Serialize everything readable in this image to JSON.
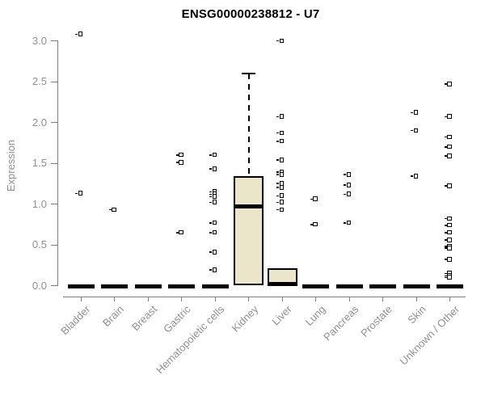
{
  "chart_data": {
    "type": "boxplot",
    "title": "ENSG00000238812 - U7",
    "ylabel": "Expression",
    "ylim": [
      0.0,
      3.0
    ],
    "grid": false,
    "box_fill_color": "#ebe5c9",
    "box_stroke_color": "#000000",
    "axis_color": "#7d7d7d",
    "tick_label_color": "#8f8f8f",
    "title_color": "#000000",
    "yticks": [
      {
        "value": 0.0,
        "label": "0.0"
      },
      {
        "value": 0.5,
        "label": "0.5"
      },
      {
        "value": 1.0,
        "label": "1.0"
      },
      {
        "value": 1.5,
        "label": "1.5"
      },
      {
        "value": 2.0,
        "label": "2.0"
      },
      {
        "value": 2.5,
        "label": "2.5"
      },
      {
        "value": 3.0,
        "label": "3.0"
      }
    ],
    "categories": [
      {
        "label": "Bladder",
        "box": {
          "q1": 0,
          "median": 0,
          "q3": 0
        },
        "outliers": [
          3.08,
          1.13
        ]
      },
      {
        "label": "Brain",
        "box": {
          "q1": 0,
          "median": 0,
          "q3": 0
        },
        "outliers": [
          0.93
        ]
      },
      {
        "label": "Breast",
        "box": {
          "q1": 0,
          "median": 0,
          "q3": 0
        },
        "outliers": []
      },
      {
        "label": "Gastric",
        "box": {
          "q1": 0,
          "median": 0,
          "q3": 0
        },
        "outliers": [
          1.6,
          1.51,
          0.65
        ]
      },
      {
        "label": "Hematopoietic cells",
        "box": {
          "q1": 0,
          "median": 0,
          "q3": 0
        },
        "outliers": [
          1.6,
          1.43,
          1.15,
          1.12,
          1.09,
          1.02,
          0.77,
          0.65,
          0.41,
          0.19
        ]
      },
      {
        "label": "Kidney",
        "box": {
          "q1": 0,
          "median": 0.97,
          "q3": 1.34,
          "whisker_high": 2.6
        },
        "outliers": []
      },
      {
        "label": "Liver",
        "box": {
          "q1": 0,
          "median": 0.02,
          "q3": 0.21
        },
        "outliers": [
          3.0,
          2.07,
          1.87,
          1.77,
          1.54,
          1.39,
          1.36,
          1.25,
          1.2,
          1.1,
          1.02,
          0.93
        ]
      },
      {
        "label": "Lung",
        "box": {
          "q1": 0,
          "median": 0,
          "q3": 0
        },
        "outliers": [
          1.06,
          0.75
        ]
      },
      {
        "label": "Pancreas",
        "box": {
          "q1": 0,
          "median": 0,
          "q3": 0
        },
        "outliers": [
          1.36,
          1.23,
          1.12,
          0.77
        ]
      },
      {
        "label": "Prostate",
        "box": {
          "q1": 0,
          "median": 0,
          "q3": 0
        },
        "outliers": []
      },
      {
        "label": "Skin",
        "box": {
          "q1": 0,
          "median": 0,
          "q3": 0
        },
        "outliers": [
          2.12,
          1.9,
          1.34
        ]
      },
      {
        "label": "Unknown / Other",
        "box": {
          "q1": 0,
          "median": 0,
          "q3": 0
        },
        "outliers": [
          2.47,
          2.07,
          1.82,
          1.7,
          1.59,
          1.22,
          0.82,
          0.74,
          0.65,
          0.56,
          0.48,
          0.46,
          0.32,
          0.15,
          0.12,
          0.1
        ]
      }
    ]
  }
}
